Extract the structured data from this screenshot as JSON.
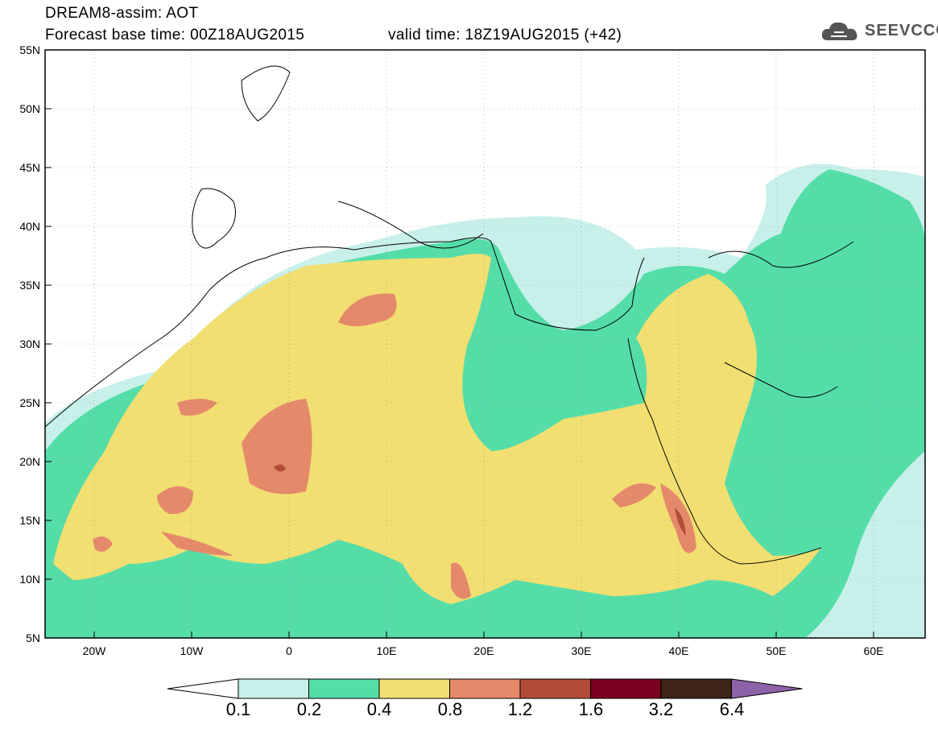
{
  "header": {
    "line1": "DREAM8-assim: AOT",
    "line2": "Forecast base time: 00Z18AUG2015",
    "valid": "valid time: 18Z19AUG2015 (+42)",
    "logo_text": "SEEVCCC"
  },
  "axes": {
    "y_labels": [
      "55N",
      "50N",
      "45N",
      "40N",
      "35N",
      "30N",
      "25N",
      "20N",
      "15N",
      "10N",
      "5N"
    ],
    "x_labels": [
      "20W",
      "10W",
      "0",
      "10E",
      "20E",
      "30E",
      "40E",
      "50E",
      "60E"
    ]
  },
  "colorbar": {
    "labels": [
      "0.1",
      "0.2",
      "0.4",
      "0.8",
      "1.2",
      "1.6",
      "3.2",
      "6.4"
    ],
    "colors": [
      "#ffffff",
      "#c8f0ea",
      "#55dda8",
      "#f2df72",
      "#e5896b",
      "#b24c38",
      "#7a0020",
      "#3d2416",
      "#8e62a8"
    ]
  },
  "legend_colors": {
    "ocean": "#ffffff",
    "c1": "#c8f0ea",
    "c2": "#55dda8",
    "c3": "#f2df72",
    "c4": "#e5896b",
    "c5": "#b24c38"
  }
}
